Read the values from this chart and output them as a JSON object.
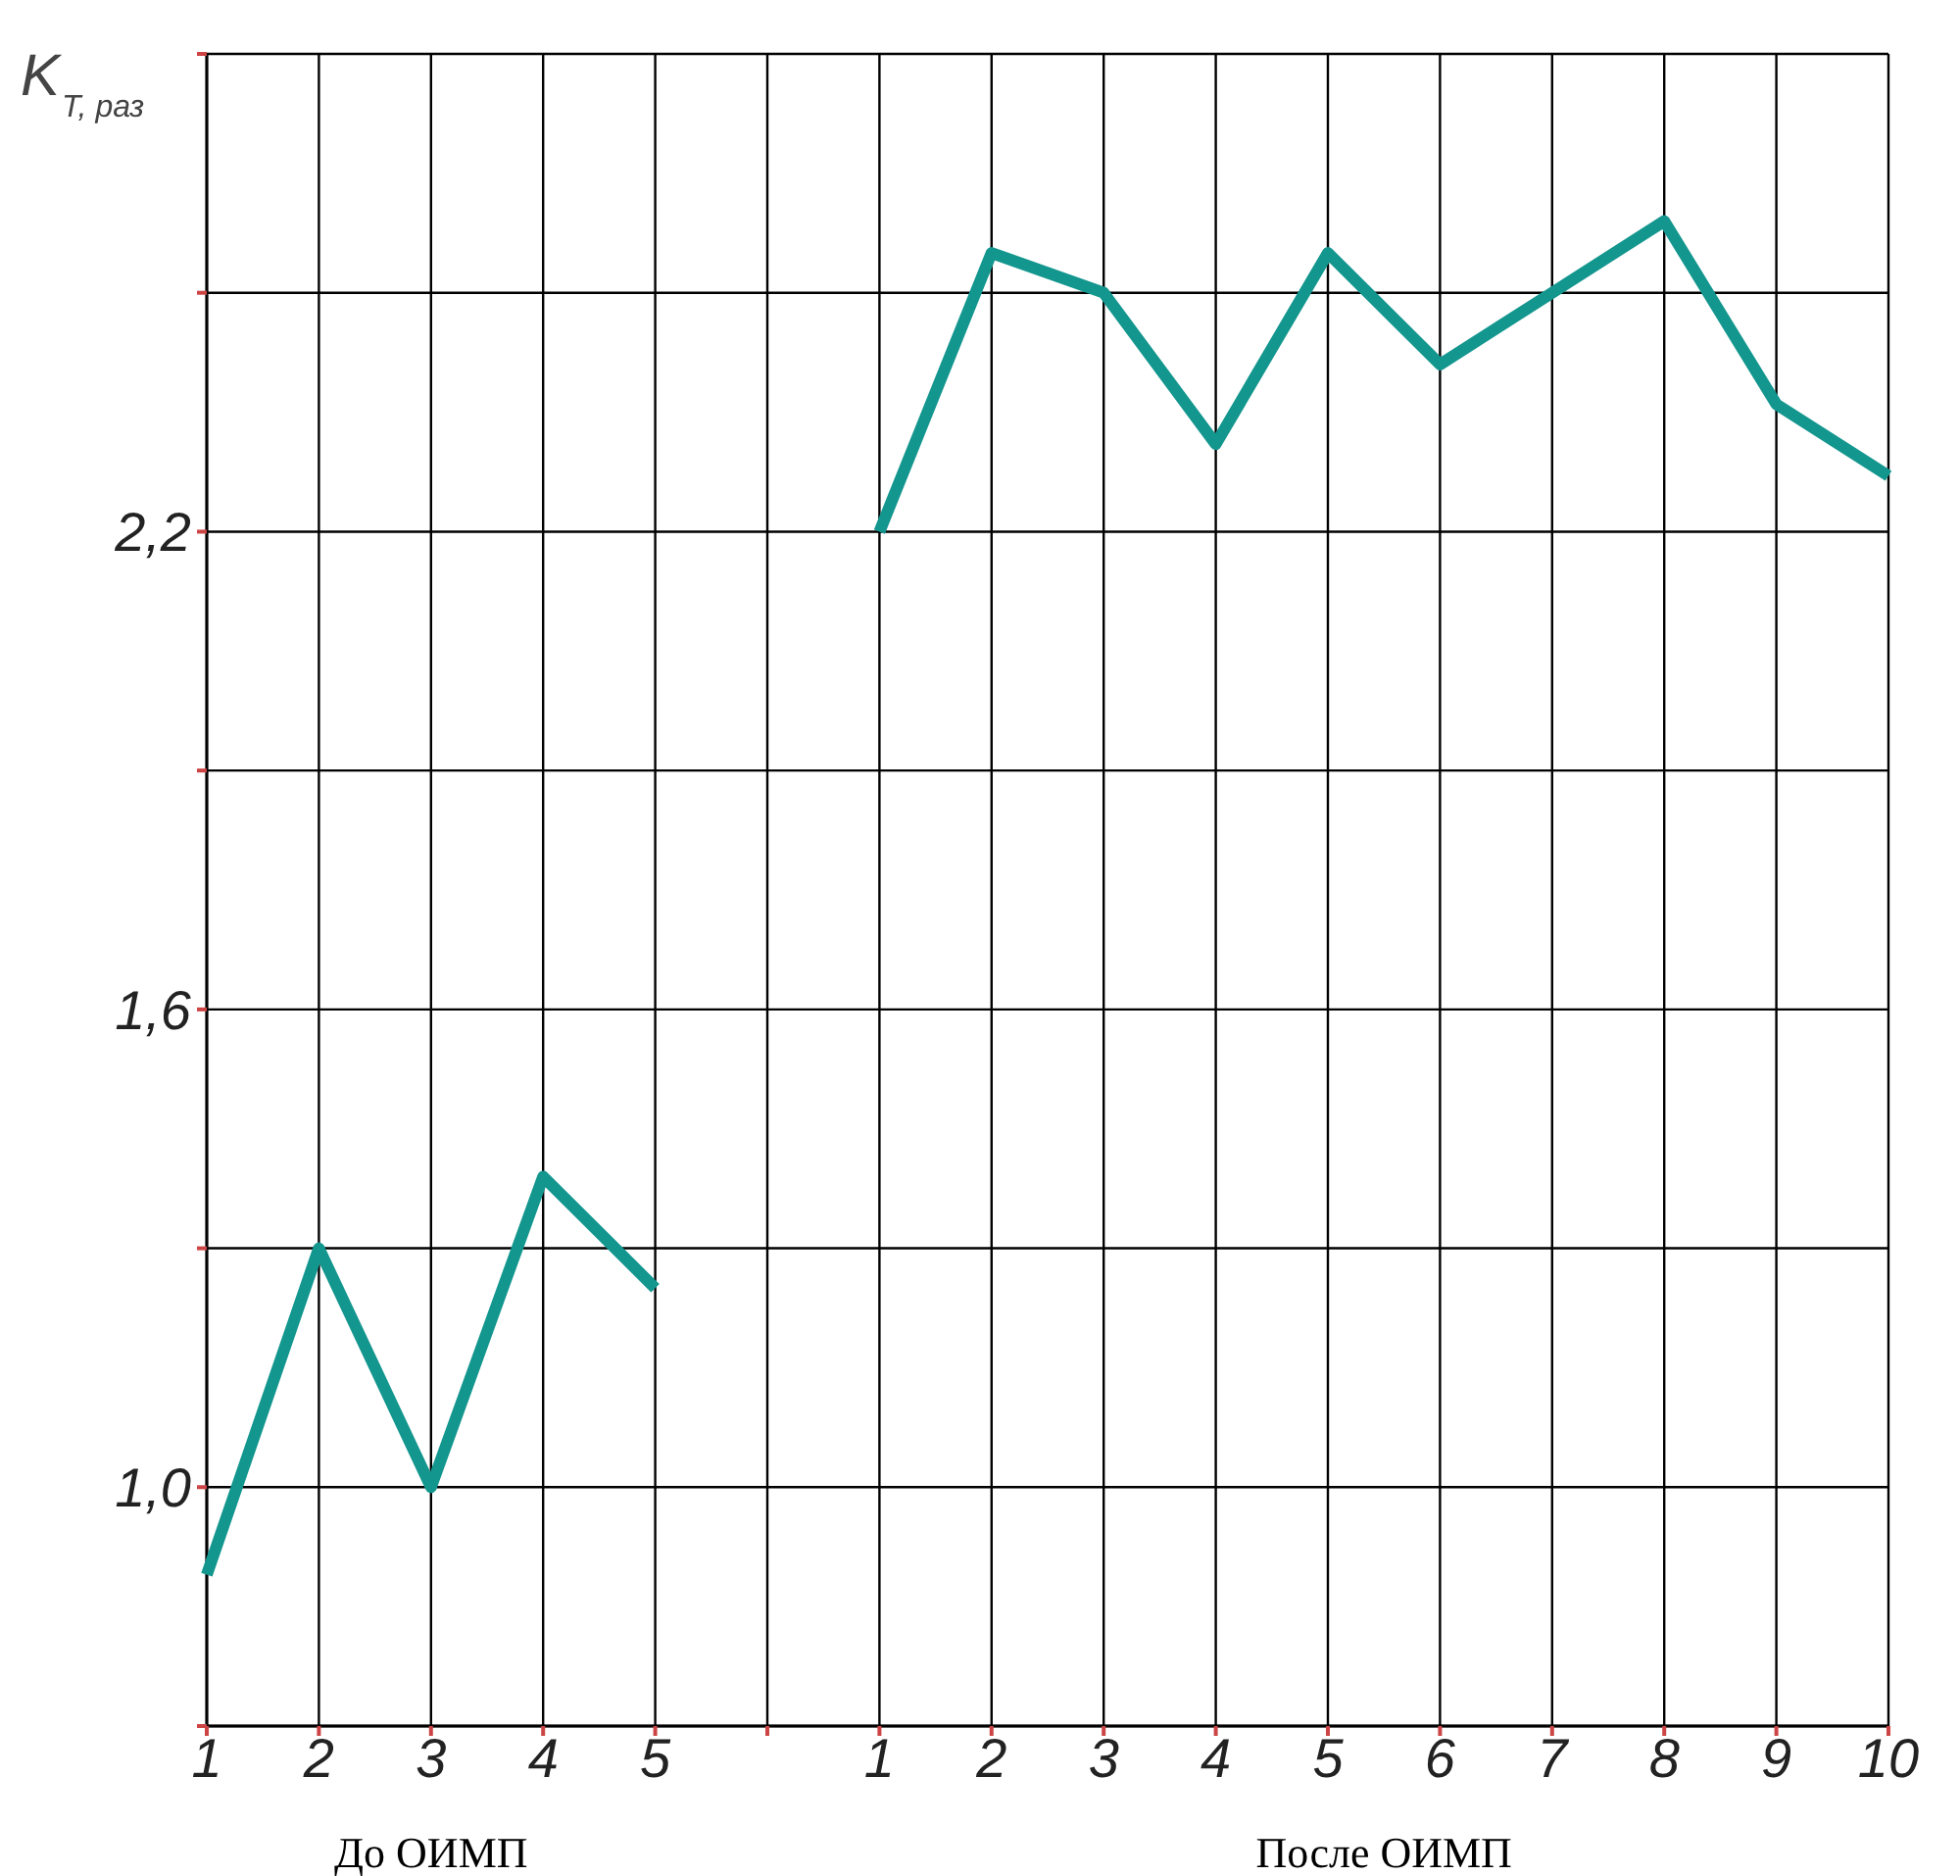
{
  "chart_data": {
    "type": "line",
    "ylabel": "K$_{T, раз}$",
    "categories": [
      "1",
      "2",
      "3",
      "4",
      "5",
      null,
      "1",
      "2",
      "3",
      "4",
      "5",
      "6",
      "7",
      "8",
      "9",
      "10"
    ],
    "series": [
      {
        "color": "#13968e",
        "values": [
          0.89,
          1.3,
          1.0,
          1.39,
          1.25,
          null,
          null,
          null,
          null,
          null,
          null,
          null,
          null,
          null,
          null,
          null
        ]
      },
      {
        "color": "#13968e",
        "values": [
          null,
          null,
          null,
          null,
          null,
          null,
          2.2,
          2.55,
          2.5,
          2.31,
          2.55,
          2.41,
          2.5,
          2.59,
          2.36,
          2.27
        ]
      }
    ],
    "ylim": [
      0.7,
      2.8
    ],
    "yticks": [
      {
        "value": 0.7,
        "label": null
      },
      {
        "value": 1.0,
        "label": "1,0"
      },
      {
        "value": 1.3,
        "label": null
      },
      {
        "value": 1.6,
        "label": "1,6"
      },
      {
        "value": 1.9,
        "label": null
      },
      {
        "value": 2.2,
        "label": "2,2"
      },
      {
        "value": 2.5,
        "label": null
      },
      {
        "value": 2.8,
        "label": null
      }
    ],
    "grid": true,
    "marker": "none",
    "line_style": "solid",
    "annotations": [
      "До ОИМП",
      "После ОИМП"
    ]
  }
}
